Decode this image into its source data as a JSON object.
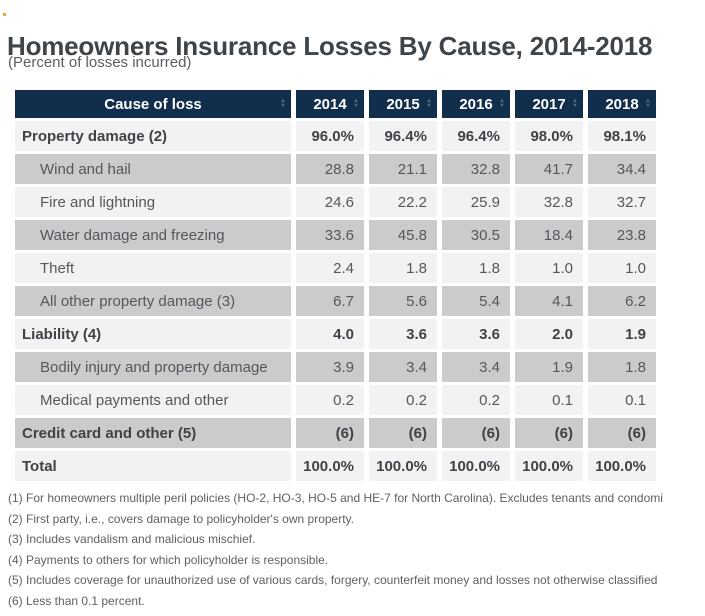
{
  "page": {
    "title": "Homeowners Insurance Losses By Cause, 2014-2018",
    "subtitle": "(Percent of losses incurred)"
  },
  "colors": {
    "header_bg": "#112e4c",
    "row_gray": "#c9cbcd",
    "row_light": "#f1f2f4",
    "bold_text": "#3f4246",
    "regular_text": "#54575c",
    "accent_dot": "#e9a43c"
  },
  "icons": {
    "sort_up": "▲",
    "sort_down": "▼"
  },
  "table": {
    "columns": [
      "Cause of loss",
      "2014",
      "2015",
      "2016",
      "2017",
      "2018"
    ],
    "rows": [
      {
        "label": "Property damage (2)",
        "values": [
          "96.0%",
          "96.4%",
          "96.4%",
          "98.0%",
          "98.1%"
        ]
      },
      {
        "label": "Wind and hail",
        "values": [
          "28.8",
          "21.1",
          "32.8",
          "41.7",
          "34.4"
        ]
      },
      {
        "label": "Fire and lightning",
        "values": [
          "24.6",
          "22.2",
          "25.9",
          "32.8",
          "32.7"
        ]
      },
      {
        "label": "Water damage and freezing",
        "values": [
          "33.6",
          "45.8",
          "30.5",
          "18.4",
          "23.8"
        ]
      },
      {
        "label": "Theft",
        "values": [
          "2.4",
          "1.8",
          "1.8",
          "1.0",
          "1.0"
        ]
      },
      {
        "label": "All other property damage (3)",
        "values": [
          "6.7",
          "5.6",
          "5.4",
          "4.1",
          "6.2"
        ]
      },
      {
        "label": "Liability (4)",
        "values": [
          "4.0",
          "3.6",
          "3.6",
          "2.0",
          "1.9"
        ]
      },
      {
        "label": "Bodily injury and property damage",
        "values": [
          "3.9",
          "3.4",
          "3.4",
          "1.9",
          "1.8"
        ]
      },
      {
        "label": "Medical payments and other",
        "values": [
          "0.2",
          "0.2",
          "0.2",
          "0.1",
          "0.1"
        ]
      },
      {
        "label": "Credit card and other (5)",
        "values": [
          "(6)",
          "(6)",
          "(6)",
          "(6)",
          "(6)"
        ]
      },
      {
        "label": "Total",
        "values": [
          "100.0%",
          "100.0%",
          "100.0%",
          "100.0%",
          "100.0%"
        ]
      }
    ]
  },
  "footnotes": [
    "(1) For homeowners multiple peril policies (HO-2, HO-3, HO-5 and HE-7 for North Carolina). Excludes tenants and condomi",
    "(2) First party, i.e., covers damage to policyholder's own property.",
    "(3) Includes vandalism and malicious mischief.",
    "(4) Payments to others for which policyholder is responsible.",
    "(5) Includes coverage for unauthorized use of various cards, forgery, counterfeit money and losses not otherwise classified",
    "(6) Less than 0.1 percent."
  ]
}
